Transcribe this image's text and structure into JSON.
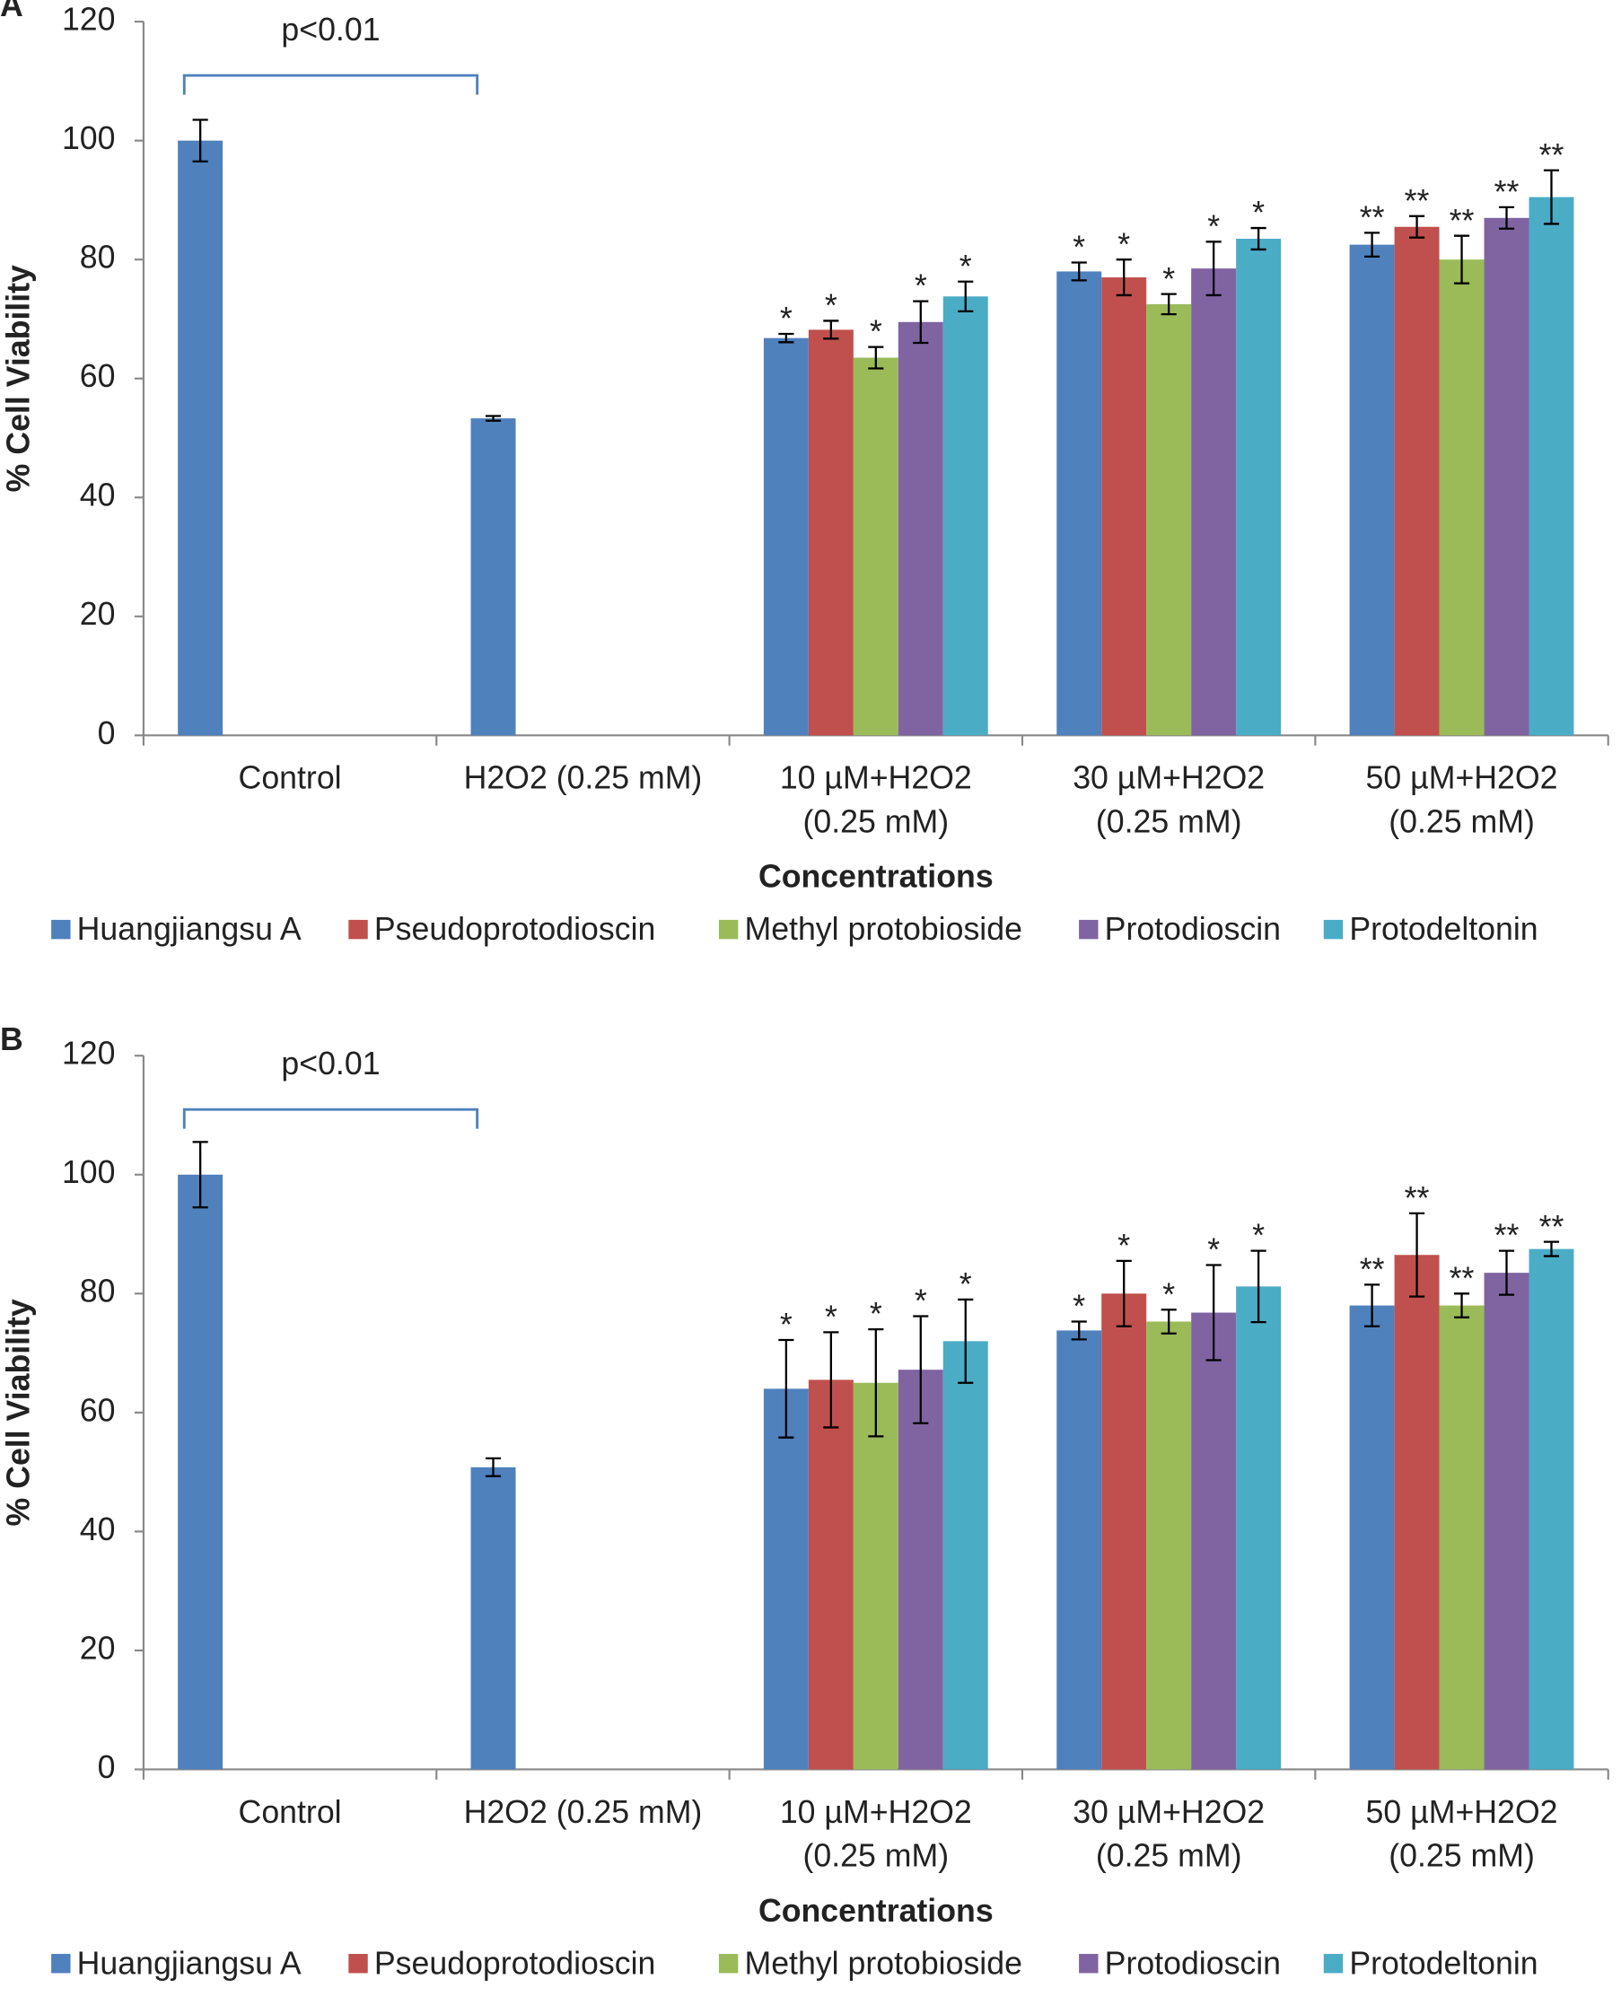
{
  "chart_data": [
    {
      "type": "bar",
      "panel_label": "A",
      "annotation": "p<0.01",
      "y_label": "% Cell Viability",
      "x_label": "Concentrations",
      "categories": [
        [
          "Control"
        ],
        [
          "H2O2 (0.25 mM)"
        ],
        [
          "10 µM+H2O2",
          "(0.25 mM)"
        ],
        [
          "30 µM+H2O2",
          "(0.25 mM)"
        ],
        [
          "50 µM+H2O2",
          "(0.25 mM)"
        ]
      ],
      "ylim": [
        0,
        120
      ],
      "yticks": [
        0,
        20,
        40,
        60,
        80,
        100,
        120
      ],
      "series": [
        {
          "name": "Huangjiangsu A",
          "color": "#4f81bd",
          "values": [
            100,
            53.3,
            66.8,
            78,
            82.5
          ],
          "errors": [
            3.5,
            0.4,
            0.7,
            1.5,
            2
          ],
          "labels": [
            null,
            null,
            "*",
            "*",
            "**"
          ]
        },
        {
          "name": "Pseudoprotodioscin",
          "color": "#c0504d",
          "values": [
            null,
            null,
            68.2,
            77,
            85.5
          ],
          "errors": [
            null,
            null,
            1.5,
            3,
            1.8
          ],
          "labels": [
            null,
            null,
            "*",
            "*",
            "**"
          ]
        },
        {
          "name": "Methyl protobioside",
          "color": "#9bbb59",
          "values": [
            null,
            null,
            63.5,
            72.5,
            80
          ],
          "errors": [
            null,
            null,
            1.8,
            1.7,
            4
          ],
          "labels": [
            null,
            null,
            "*",
            "*",
            "**"
          ]
        },
        {
          "name": "Protodioscin",
          "color": "#8064a2",
          "values": [
            null,
            null,
            69.5,
            78.5,
            87
          ],
          "errors": [
            null,
            null,
            3.5,
            4.5,
            1.8
          ],
          "labels": [
            null,
            null,
            "*",
            "*",
            "**"
          ]
        },
        {
          "name": "Protodeltonin",
          "color": "#4bacc6",
          "values": [
            null,
            null,
            73.8,
            83.5,
            90.5
          ],
          "errors": [
            null,
            null,
            2.5,
            1.8,
            4.5
          ],
          "labels": [
            null,
            null,
            "*",
            "*",
            "**"
          ]
        }
      ]
    },
    {
      "type": "bar",
      "panel_label": "B",
      "annotation": "p<0.01",
      "y_label": "% Cell Viability",
      "x_label": "Concentrations",
      "categories": [
        [
          "Control"
        ],
        [
          "H2O2 (0.25 mM)"
        ],
        [
          "10 µM+H2O2",
          "(0.25 mM)"
        ],
        [
          "30 µM+H2O2",
          "(0.25 mM)"
        ],
        [
          "50 µM+H2O2",
          "(0.25 mM)"
        ]
      ],
      "ylim": [
        0,
        120
      ],
      "yticks": [
        0,
        20,
        40,
        60,
        80,
        100,
        120
      ],
      "series": [
        {
          "name": "Huangjiangsu A",
          "color": "#4f81bd",
          "values": [
            100,
            50.8,
            64,
            73.8,
            78
          ],
          "errors": [
            5.5,
            1.5,
            8.2,
            1.5,
            3.5
          ],
          "labels": [
            null,
            null,
            "*",
            "*",
            "**"
          ]
        },
        {
          "name": "Pseudoprotodioscin",
          "color": "#c0504d",
          "values": [
            null,
            null,
            65.5,
            80,
            86.5
          ],
          "errors": [
            null,
            null,
            8,
            5.5,
            7
          ],
          "labels": [
            null,
            null,
            "*",
            "*",
            "**"
          ]
        },
        {
          "name": "Methyl protobioside",
          "color": "#9bbb59",
          "values": [
            null,
            null,
            65,
            75.3,
            78
          ],
          "errors": [
            null,
            null,
            9,
            2,
            2
          ],
          "labels": [
            null,
            null,
            "*",
            "*",
            "**"
          ]
        },
        {
          "name": "Protodioscin",
          "color": "#8064a2",
          "values": [
            null,
            null,
            67.2,
            76.8,
            83.5
          ],
          "errors": [
            null,
            null,
            9,
            8,
            3.7
          ],
          "labels": [
            null,
            null,
            "*",
            "*",
            "**"
          ]
        },
        {
          "name": "Protodeltonin",
          "color": "#4bacc6",
          "values": [
            null,
            null,
            72,
            81.2,
            87.5
          ],
          "errors": [
            null,
            null,
            7,
            6,
            1.2
          ],
          "labels": [
            null,
            null,
            "*",
            "*",
            "**"
          ]
        }
      ]
    }
  ]
}
